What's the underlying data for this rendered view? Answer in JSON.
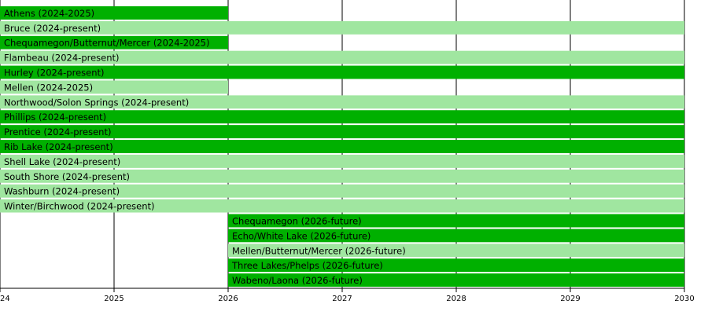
{
  "chart_data": {
    "type": "timeline",
    "xlim": [
      2024,
      2030
    ],
    "xticks": [
      2024,
      2025,
      2026,
      2027,
      2028,
      2029,
      2030
    ],
    "grid": true,
    "bars": [
      {
        "label": "Athens (2024-2025)",
        "start": 2024,
        "end": 2026,
        "color": "#00b000"
      },
      {
        "label": "Bruce (2024-present)",
        "start": 2024,
        "end": 2030,
        "color": "#a0e6a0"
      },
      {
        "label": "Chequamegon/Butternut/Mercer (2024-2025)",
        "start": 2024,
        "end": 2026,
        "color": "#00b000"
      },
      {
        "label": "Flambeau (2024-present)",
        "start": 2024,
        "end": 2030,
        "color": "#a0e6a0"
      },
      {
        "label": "Hurley (2024-present)",
        "start": 2024,
        "end": 2030,
        "color": "#00b000"
      },
      {
        "label": "Mellen (2024-2025)",
        "start": 2024,
        "end": 2026,
        "color": "#a0e6a0"
      },
      {
        "label": "Northwood/Solon Springs (2024-present)",
        "start": 2024,
        "end": 2030,
        "color": "#a0e6a0"
      },
      {
        "label": "Phillips (2024-present)",
        "start": 2024,
        "end": 2030,
        "color": "#00b000"
      },
      {
        "label": "Prentice (2024-present)",
        "start": 2024,
        "end": 2030,
        "color": "#00b000"
      },
      {
        "label": "Rib Lake (2024-present)",
        "start": 2024,
        "end": 2030,
        "color": "#00b000"
      },
      {
        "label": "Shell Lake (2024-present)",
        "start": 2024,
        "end": 2030,
        "color": "#a0e6a0"
      },
      {
        "label": "South Shore (2024-present)",
        "start": 2024,
        "end": 2030,
        "color": "#a0e6a0"
      },
      {
        "label": "Washburn (2024-present)",
        "start": 2024,
        "end": 2030,
        "color": "#a0e6a0"
      },
      {
        "label": "Winter/Birchwood (2024-present)",
        "start": 2024,
        "end": 2030,
        "color": "#a0e6a0"
      },
      {
        "label": "Chequamegon (2026-future)",
        "start": 2026,
        "end": 2030,
        "color": "#00b000"
      },
      {
        "label": "Echo/White Lake (2026-future)",
        "start": 2026,
        "end": 2030,
        "color": "#00b000"
      },
      {
        "label": "Mellen/Butternut/Mercer (2026-future)",
        "start": 2026,
        "end": 2030,
        "color": "#a0e6a0"
      },
      {
        "label": "Three Lakes/Phelps (2026-future)",
        "start": 2026,
        "end": 2030,
        "color": "#00b000"
      },
      {
        "label": "Wabeno/Laona (2026-future)",
        "start": 2026,
        "end": 2030,
        "color": "#00b000"
      }
    ]
  }
}
